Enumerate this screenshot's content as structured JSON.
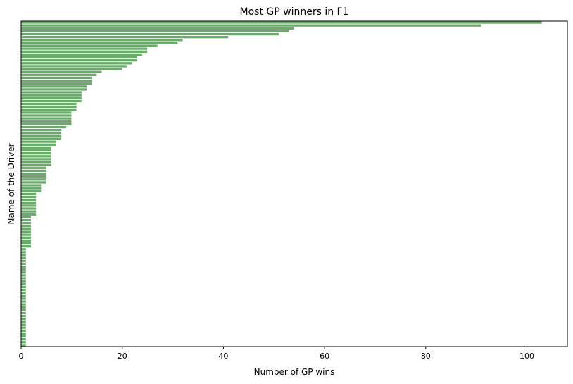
{
  "chart_data": {
    "type": "bar",
    "orientation": "horizontal",
    "title": "Most GP winners in F1",
    "xlabel": "Number of GP wins",
    "ylabel": "Name of the Driver",
    "xlim": [
      0,
      108
    ],
    "xticks": [
      0,
      20,
      40,
      60,
      80,
      100
    ],
    "y_tick_labels_visible": false,
    "grid": false,
    "bar_color": "#6aaa6a",
    "values": [
      103,
      91,
      54,
      53,
      51,
      41,
      32,
      31,
      27,
      25,
      25,
      24,
      23,
      23,
      22,
      21,
      20,
      16,
      15,
      14,
      14,
      14,
      13,
      13,
      12,
      12,
      12,
      12,
      11,
      11,
      11,
      10,
      10,
      10,
      10,
      10,
      9,
      8,
      8,
      8,
      8,
      7,
      7,
      6,
      6,
      6,
      6,
      6,
      6,
      6,
      5,
      5,
      5,
      5,
      5,
      5,
      4,
      4,
      4,
      3,
      3,
      3,
      3,
      3,
      3,
      3,
      3,
      2,
      2,
      2,
      2,
      2,
      2,
      2,
      2,
      2,
      2,
      2,
      1,
      1,
      1,
      1,
      1,
      1,
      1,
      1,
      1,
      1,
      1,
      1,
      1,
      1,
      1,
      1,
      1,
      1,
      1,
      1,
      1,
      1,
      1,
      1,
      1,
      1,
      1,
      1,
      1,
      1,
      1,
      1,
      1,
      1
    ]
  }
}
